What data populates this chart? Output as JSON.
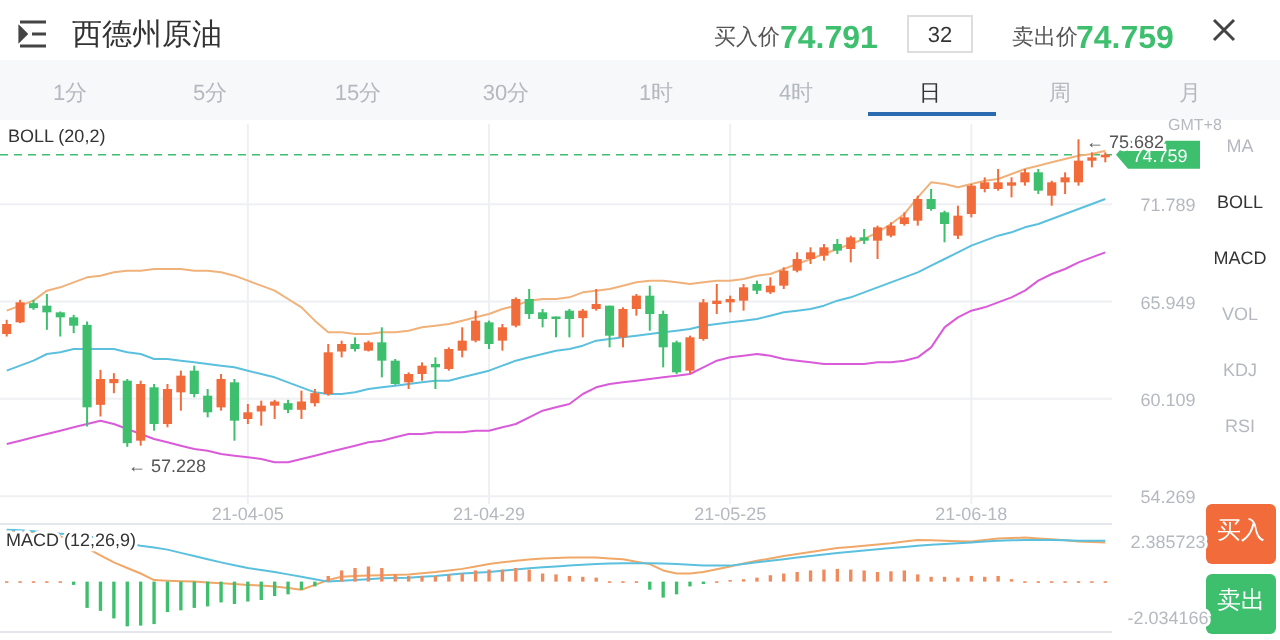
{
  "chart_data": [
    {
      "type": "candlestick",
      "title": "西德州原油",
      "categories": [
        null,
        null,
        null,
        null,
        null,
        null,
        null,
        null,
        null,
        null,
        null,
        null,
        null,
        null,
        null,
        null,
        null,
        null,
        "21-04-05",
        null,
        null,
        null,
        null,
        null,
        null,
        null,
        null,
        null,
        null,
        null,
        null,
        null,
        null,
        null,
        null,
        null,
        "21-04-29",
        null,
        null,
        null,
        null,
        null,
        null,
        null,
        null,
        null,
        null,
        null,
        null,
        null,
        null,
        null,
        null,
        null,
        "21-05-25",
        null,
        null,
        null,
        null,
        null,
        null,
        null,
        null,
        null,
        null,
        null,
        null,
        null,
        null,
        null,
        null,
        null,
        "21-06-18",
        null,
        null,
        null,
        null,
        null,
        null,
        null,
        null,
        null,
        null
      ],
      "ohlc": [
        [
          64.0,
          64.85,
          63.85,
          64.6
        ],
        [
          64.7,
          66.05,
          64.65,
          65.9
        ],
        [
          65.85,
          66.05,
          65.45,
          65.55
        ],
        [
          65.7,
          66.4,
          64.25,
          65.3
        ],
        [
          65.3,
          65.35,
          63.85,
          65.0
        ],
        [
          65.0,
          65.15,
          64.05,
          64.5
        ],
        [
          64.55,
          64.75,
          58.45,
          59.6
        ],
        [
          59.75,
          61.85,
          59.05,
          61.3
        ],
        [
          61.05,
          61.65,
          60.45,
          61.3
        ],
        [
          61.2,
          61.3,
          57.228,
          57.45
        ],
        [
          57.6,
          61.2,
          57.3,
          61.0
        ],
        [
          60.8,
          61.0,
          58.2,
          58.6
        ],
        [
          58.6,
          61.0,
          58.4,
          60.7
        ],
        [
          60.5,
          61.8,
          59.4,
          61.5
        ],
        [
          61.8,
          62.1,
          60.2,
          60.4
        ],
        [
          60.3,
          60.7,
          59.0,
          59.3
        ],
        [
          59.6,
          61.6,
          59.4,
          61.3
        ],
        [
          61.1,
          61.3,
          57.6,
          58.8
        ],
        [
          58.9,
          59.8,
          58.6,
          59.3
        ],
        [
          59.35,
          60.0,
          58.5,
          59.7
        ],
        [
          59.7,
          60.05,
          58.9,
          59.95
        ],
        [
          59.85,
          60.05,
          59.25,
          59.45
        ],
        [
          59.45,
          60.6,
          58.9,
          59.95
        ],
        [
          59.85,
          60.7,
          59.65,
          60.45
        ],
        [
          60.4,
          63.4,
          60.3,
          62.9
        ],
        [
          62.95,
          63.6,
          62.6,
          63.4
        ],
        [
          63.4,
          63.8,
          62.95,
          63.1
        ],
        [
          63.0,
          63.6,
          62.95,
          63.5
        ],
        [
          63.5,
          64.4,
          61.4,
          62.4
        ],
        [
          62.4,
          62.5,
          60.95,
          61.0
        ],
        [
          61.1,
          61.7,
          60.7,
          61.6
        ],
        [
          61.6,
          62.3,
          61.2,
          62.1
        ],
        [
          62.2,
          62.6,
          60.7,
          62.0
        ],
        [
          61.9,
          63.2,
          61.8,
          63.1
        ],
        [
          63.0,
          64.4,
          62.6,
          63.6
        ],
        [
          63.6,
          65.4,
          63.5,
          64.8
        ],
        [
          64.7,
          64.8,
          63.1,
          63.4
        ],
        [
          63.6,
          64.6,
          63.0,
          64.4
        ],
        [
          64.5,
          66.2,
          64.4,
          66.1
        ],
        [
          66.1,
          66.7,
          64.9,
          65.2
        ],
        [
          65.3,
          65.5,
          64.4,
          64.9
        ],
        [
          65.05,
          65.05,
          63.8,
          64.9
        ],
        [
          65.4,
          65.5,
          63.8,
          64.9
        ],
        [
          64.95,
          65.5,
          63.8,
          65.4
        ],
        [
          65.5,
          66.7,
          65.4,
          65.8
        ],
        [
          65.7,
          65.7,
          63.2,
          63.9
        ],
        [
          63.8,
          65.6,
          63.2,
          65.5
        ],
        [
          65.5,
          66.4,
          65.1,
          66.3
        ],
        [
          66.3,
          66.9,
          64.2,
          65.2
        ],
        [
          65.2,
          65.4,
          62.0,
          63.2
        ],
        [
          63.5,
          63.6,
          61.6,
          61.7
        ],
        [
          61.8,
          63.9,
          61.6,
          63.8
        ],
        [
          63.7,
          66.1,
          63.6,
          65.9
        ],
        [
          65.8,
          67.0,
          65.2,
          66.0
        ],
        [
          65.9,
          66.3,
          65.3,
          66.1
        ],
        [
          66.0,
          67.0,
          65.4,
          66.8
        ],
        [
          67.0,
          67.2,
          66.4,
          66.6
        ],
        [
          66.5,
          67.4,
          66.4,
          66.9
        ],
        [
          66.9,
          68.0,
          66.7,
          67.8
        ],
        [
          67.8,
          68.9,
          67.7,
          68.5
        ],
        [
          68.5,
          69.2,
          68.2,
          68.9
        ],
        [
          68.7,
          69.4,
          68.4,
          69.2
        ],
        [
          69.4,
          69.7,
          68.8,
          69.0
        ],
        [
          69.1,
          69.9,
          68.3,
          69.8
        ],
        [
          69.8,
          70.3,
          69.4,
          69.6
        ],
        [
          69.6,
          70.5,
          68.5,
          70.4
        ],
        [
          69.9,
          70.7,
          69.8,
          70.5
        ],
        [
          70.6,
          71.3,
          70.5,
          71.0
        ],
        [
          70.8,
          72.3,
          70.5,
          72.1
        ],
        [
          72.1,
          72.7,
          71.4,
          71.5
        ],
        [
          71.3,
          71.4,
          69.5,
          70.6
        ],
        [
          69.9,
          71.7,
          69.7,
          71.1
        ],
        [
          71.2,
          73.0,
          71.0,
          72.9
        ],
        [
          72.7,
          73.4,
          72.5,
          73.1
        ],
        [
          72.7,
          73.9,
          72.6,
          73.1
        ],
        [
          72.9,
          73.4,
          72.2,
          73.1
        ],
        [
          73.1,
          73.9,
          72.9,
          73.7
        ],
        [
          73.7,
          73.9,
          72.4,
          72.6
        ],
        [
          72.3,
          73.2,
          71.7,
          73.1
        ],
        [
          73.1,
          73.7,
          72.4,
          73.4
        ],
        [
          73.1,
          75.682,
          72.9,
          74.4
        ],
        [
          74.4,
          74.9,
          74.0,
          74.6
        ],
        [
          74.6,
          74.9,
          74.3,
          74.759
        ]
      ],
      "colors": [
        "#f26b3a",
        "#f26b3a",
        "#3dbf6e",
        "#3dbf6e",
        "#3dbf6e",
        "#3dbf6e",
        "#3dbf6e",
        "#f26b3a",
        "#f26b3a",
        "#3dbf6e",
        "#f26b3a",
        "#3dbf6e",
        "#f26b3a",
        "#f26b3a",
        "#3dbf6e",
        "#3dbf6e",
        "#f26b3a",
        "#3dbf6e",
        "#f26b3a",
        "#f26b3a",
        "#f26b3a",
        "#3dbf6e",
        "#f26b3a",
        "#f26b3a",
        "#f26b3a",
        "#f26b3a",
        "#3dbf6e",
        "#f26b3a",
        "#3dbf6e",
        "#3dbf6e",
        "#f26b3a",
        "#f26b3a",
        "#3dbf6e",
        "#f26b3a",
        "#f26b3a",
        "#f26b3a",
        "#3dbf6e",
        "#f26b3a",
        "#f26b3a",
        "#3dbf6e",
        "#3dbf6e",
        "#3dbf6e",
        "#3dbf6e",
        "#f26b3a",
        "#f26b3a",
        "#3dbf6e",
        "#f26b3a",
        "#f26b3a",
        "#3dbf6e",
        "#3dbf6e",
        "#3dbf6e",
        "#f26b3a",
        "#f26b3a",
        "#f26b3a",
        "#f26b3a",
        "#f26b3a",
        "#3dbf6e",
        "#f26b3a",
        "#f26b3a",
        "#f26b3a",
        "#f26b3a",
        "#f26b3a",
        "#3dbf6e",
        "#f26b3a",
        "#3dbf6e",
        "#f26b3a",
        "#f26b3a",
        "#f26b3a",
        "#f26b3a",
        "#3dbf6e",
        "#3dbf6e",
        "#f26b3a",
        "#f26b3a",
        "#f26b3a",
        "#f26b3a",
        "#f26b3a",
        "#f26b3a",
        "#3dbf6e",
        "#f26b3a",
        "#f26b3a",
        "#f26b3a",
        "#f26b3a",
        "#f26b3a"
      ],
      "series": [
        {
          "type": "line",
          "color": "#f0b27a",
          "values": [
            65.4,
            65.7,
            66.0,
            66.6,
            66.8,
            67.1,
            67.4,
            67.5,
            67.7,
            67.8,
            67.8,
            67.9,
            67.9,
            67.9,
            67.8,
            67.8,
            67.7,
            67.5,
            67.2,
            66.9,
            66.6,
            66.1,
            65.6,
            64.8,
            64.1,
            64.1,
            64.0,
            64.0,
            64.1,
            64.1,
            64.2,
            64.4,
            64.5,
            64.6,
            64.8,
            65.0,
            65.2,
            65.5,
            65.7,
            66.0,
            66.1,
            66.1,
            66.2,
            66.5,
            66.6,
            66.7,
            66.9,
            67.1,
            67.2,
            67.2,
            67.1,
            67.0,
            67.1,
            67.2,
            67.2,
            67.3,
            67.5,
            67.6,
            67.9,
            68.2,
            68.5,
            68.8,
            69.1,
            69.4,
            69.7,
            70.1,
            70.6,
            71.2,
            72.2,
            73.1,
            73.0,
            72.8,
            73.0,
            73.2,
            73.3,
            73.6,
            73.9,
            74.1,
            74.3,
            74.5,
            74.7,
            74.8,
            75.0
          ]
        },
        {
          "type": "line",
          "color": "#5bc0de",
          "values": [
            61.8,
            62.1,
            62.4,
            62.8,
            62.9,
            63.1,
            63.1,
            63.1,
            63.1,
            62.9,
            62.8,
            62.5,
            62.5,
            62.4,
            62.3,
            62.2,
            62.1,
            62.0,
            61.8,
            61.6,
            61.4,
            61.1,
            60.8,
            60.5,
            60.4,
            60.4,
            60.5,
            60.7,
            60.8,
            60.9,
            61.0,
            61.1,
            61.2,
            61.2,
            61.4,
            61.6,
            61.8,
            62.1,
            62.4,
            62.6,
            62.8,
            63.0,
            63.1,
            63.3,
            63.6,
            63.7,
            63.8,
            63.9,
            64.0,
            64.1,
            64.2,
            64.3,
            64.5,
            64.6,
            64.7,
            64.8,
            64.9,
            65.1,
            65.3,
            65.4,
            65.5,
            65.7,
            66.0,
            66.2,
            66.5,
            66.8,
            67.1,
            67.4,
            67.7,
            68.1,
            68.5,
            68.9,
            69.3,
            69.6,
            69.9,
            70.1,
            70.4,
            70.6,
            70.9,
            71.2,
            71.5,
            71.8,
            72.1
          ]
        },
        {
          "type": "line",
          "color": "#d95bd9",
          "values": [
            57.4,
            57.6,
            57.8,
            58.0,
            58.2,
            58.4,
            58.6,
            58.8,
            58.6,
            58.3,
            58.0,
            57.7,
            57.5,
            57.3,
            57.1,
            57.0,
            56.8,
            56.7,
            56.6,
            56.5,
            56.3,
            56.3,
            56.5,
            56.7,
            56.9,
            57.1,
            57.3,
            57.5,
            57.6,
            57.8,
            58.0,
            58.0,
            58.1,
            58.1,
            58.1,
            58.2,
            58.2,
            58.4,
            58.6,
            59.0,
            59.4,
            59.6,
            59.8,
            60.4,
            60.8,
            61.0,
            61.1,
            61.2,
            61.3,
            61.4,
            61.5,
            61.6,
            62.0,
            62.4,
            62.6,
            62.7,
            62.8,
            62.7,
            62.5,
            62.4,
            62.3,
            62.2,
            62.2,
            62.2,
            62.2,
            62.3,
            62.3,
            62.4,
            62.6,
            63.2,
            64.4,
            65.0,
            65.4,
            65.6,
            65.9,
            66.2,
            66.6,
            67.2,
            67.6,
            67.9,
            68.3,
            68.6,
            68.9
          ]
        }
      ],
      "ylim": [
        53.8,
        76.6
      ],
      "yticks": [
        54.269,
        60.109,
        65.949,
        71.789
      ],
      "grid": true,
      "ref_lines": [
        {
          "axis": "y",
          "value": 74.759,
          "label": "74.759",
          "color": "#3dbf6e",
          "line_style": "dashed"
        }
      ],
      "annotations": [
        "BOLL (20,2)",
        "GMT+8",
        "买入价",
        "74.791",
        "32",
        "卖出价",
        "74.759",
        "1分",
        "5分",
        "15分",
        "30分",
        "1时",
        "4时",
        "日",
        "周",
        "月",
        "MA",
        "BOLL",
        "MACD",
        "VOL",
        "KDJ",
        "RSI",
        "买入",
        "卖出",
        "← 75.682",
        "← 57.228"
      ]
    },
    {
      "type": "bar",
      "title": "MACD (12,26,9)",
      "categories": [
        null,
        null,
        null,
        null,
        null,
        null,
        null,
        null,
        null,
        null,
        null,
        null,
        null,
        null,
        null,
        null,
        null,
        null,
        null,
        null,
        null,
        null,
        null,
        null,
        null,
        null,
        null,
        null,
        null,
        null,
        null,
        null,
        null,
        null,
        null,
        null,
        null,
        null,
        null,
        null,
        null,
        null,
        null,
        null,
        null,
        null,
        null,
        null,
        null,
        null,
        null,
        null,
        null,
        null,
        null,
        null,
        null,
        null,
        null,
        null,
        null,
        null,
        null,
        null,
        null,
        null,
        null,
        null,
        null,
        null,
        null,
        null,
        null,
        null,
        null,
        null,
        null,
        null,
        null,
        null,
        null,
        null,
        null
      ],
      "series": [
        {
          "type": "bar",
          "color": "#f08a5d",
          "values": [
            0.02,
            0.02,
            0.02,
            0.02,
            0.02,
            null,
            null,
            null,
            null,
            null,
            null,
            null,
            null,
            null,
            null,
            null,
            null,
            null,
            null,
            null,
            null,
            null,
            null,
            null,
            0.33,
            0.65,
            0.79,
            0.88,
            0.79,
            0.42,
            0.33,
            0.33,
            0.33,
            0.42,
            0.47,
            0.65,
            0.7,
            0.7,
            0.79,
            0.7,
            0.47,
            0.42,
            0.33,
            0.28,
            0.23,
            0.02,
            0.02,
            0.02,
            null,
            null,
            null,
            null,
            null,
            0.02,
            0.09,
            0.14,
            0.23,
            0.37,
            0.47,
            0.56,
            0.65,
            0.7,
            0.74,
            0.7,
            0.65,
            0.56,
            0.6,
            0.65,
            0.42,
            0.28,
            0.28,
            0.23,
            0.33,
            0.28,
            0.33,
            0.14,
            0.02,
            0.02,
            0.02,
            0.02,
            0.02,
            0.02,
            0.02
          ]
        },
        {
          "type": "bar",
          "color": "#3dbf6e",
          "values": [
            null,
            null,
            null,
            null,
            null,
            -0.19,
            -1.53,
            -1.7,
            -2.14,
            -2.6,
            -2.56,
            -2.47,
            -1.77,
            -1.67,
            -1.53,
            -1.44,
            -1.21,
            -1.3,
            -1.16,
            -1.07,
            -0.84,
            -0.74,
            -0.47,
            -0.28,
            null,
            null,
            null,
            null,
            null,
            null,
            null,
            null,
            null,
            null,
            null,
            null,
            null,
            null,
            null,
            null,
            null,
            null,
            null,
            null,
            null,
            null,
            null,
            null,
            -0.47,
            -0.93,
            -0.74,
            -0.28,
            -0.14,
            null,
            null,
            null,
            null,
            null,
            null,
            null,
            null,
            null,
            null,
            null,
            null,
            null,
            null,
            null,
            null,
            null,
            null,
            null,
            null,
            null,
            null,
            null,
            null,
            null,
            null,
            null,
            null,
            null,
            null
          ]
        },
        {
          "type": "line",
          "color": "#f0a868",
          "values": [
            2.98,
            2.93,
            2.88,
            2.77,
            2.65,
            2.3,
            1.95,
            1.53,
            1.12,
            0.79,
            0.47,
            0.09,
            0.05,
            0.02,
            0.0,
            -0.05,
            -0.09,
            -0.14,
            -0.19,
            -0.23,
            -0.28,
            -0.37,
            -0.47,
            -0.19,
            0.09,
            0.28,
            0.33,
            0.35,
            0.37,
            0.4,
            0.42,
            0.49,
            0.56,
            0.65,
            0.74,
            0.88,
            1.02,
            1.12,
            1.21,
            1.28,
            1.35,
            1.37,
            1.4,
            1.4,
            1.4,
            1.35,
            1.3,
            1.16,
            1.02,
            0.65,
            0.47,
            0.47,
            0.56,
            0.72,
            0.88,
            1.05,
            1.21,
            1.35,
            1.49,
            1.6,
            1.72,
            1.84,
            1.95,
            2.02,
            2.09,
            2.16,
            2.23,
            2.33,
            2.42,
            2.4,
            2.37,
            2.35,
            2.33,
            2.42,
            2.51,
            2.53,
            2.56,
            2.51,
            2.46,
            2.4,
            2.33,
            2.3,
            2.28
          ]
        },
        {
          "type": "line",
          "color": "#5bc0de",
          "values": [
            3.02,
            2.98,
            2.93,
            2.86,
            2.79,
            2.72,
            2.65,
            2.51,
            2.37,
            2.23,
            2.09,
            1.98,
            1.86,
            1.67,
            1.49,
            1.3,
            1.12,
            0.95,
            0.79,
            0.67,
            0.56,
            0.42,
            0.28,
            0.14,
            0.0,
            0.05,
            0.09,
            0.14,
            0.19,
            0.21,
            0.23,
            0.28,
            0.33,
            0.4,
            0.47,
            0.51,
            0.56,
            0.63,
            0.7,
            0.77,
            0.84,
            0.88,
            0.93,
            0.98,
            1.02,
            1.05,
            1.07,
            1.07,
            1.07,
            1.05,
            1.02,
            0.98,
            0.93,
            0.93,
            0.93,
            1.02,
            1.12,
            1.21,
            1.3,
            1.4,
            1.49,
            1.58,
            1.67,
            1.74,
            1.81,
            1.88,
            1.95,
            2.02,
            2.09,
            2.14,
            2.19,
            2.23,
            2.28,
            2.33,
            2.37,
            2.4,
            2.42,
            2.42,
            2.42,
            2.4,
            2.37,
            2.37,
            2.37
          ]
        }
      ],
      "ylim": [
        -2.93,
        3.35
      ],
      "yticks": [
        -2.034166,
        2.385723
      ],
      "tick_labels": "y"
    }
  ]
}
